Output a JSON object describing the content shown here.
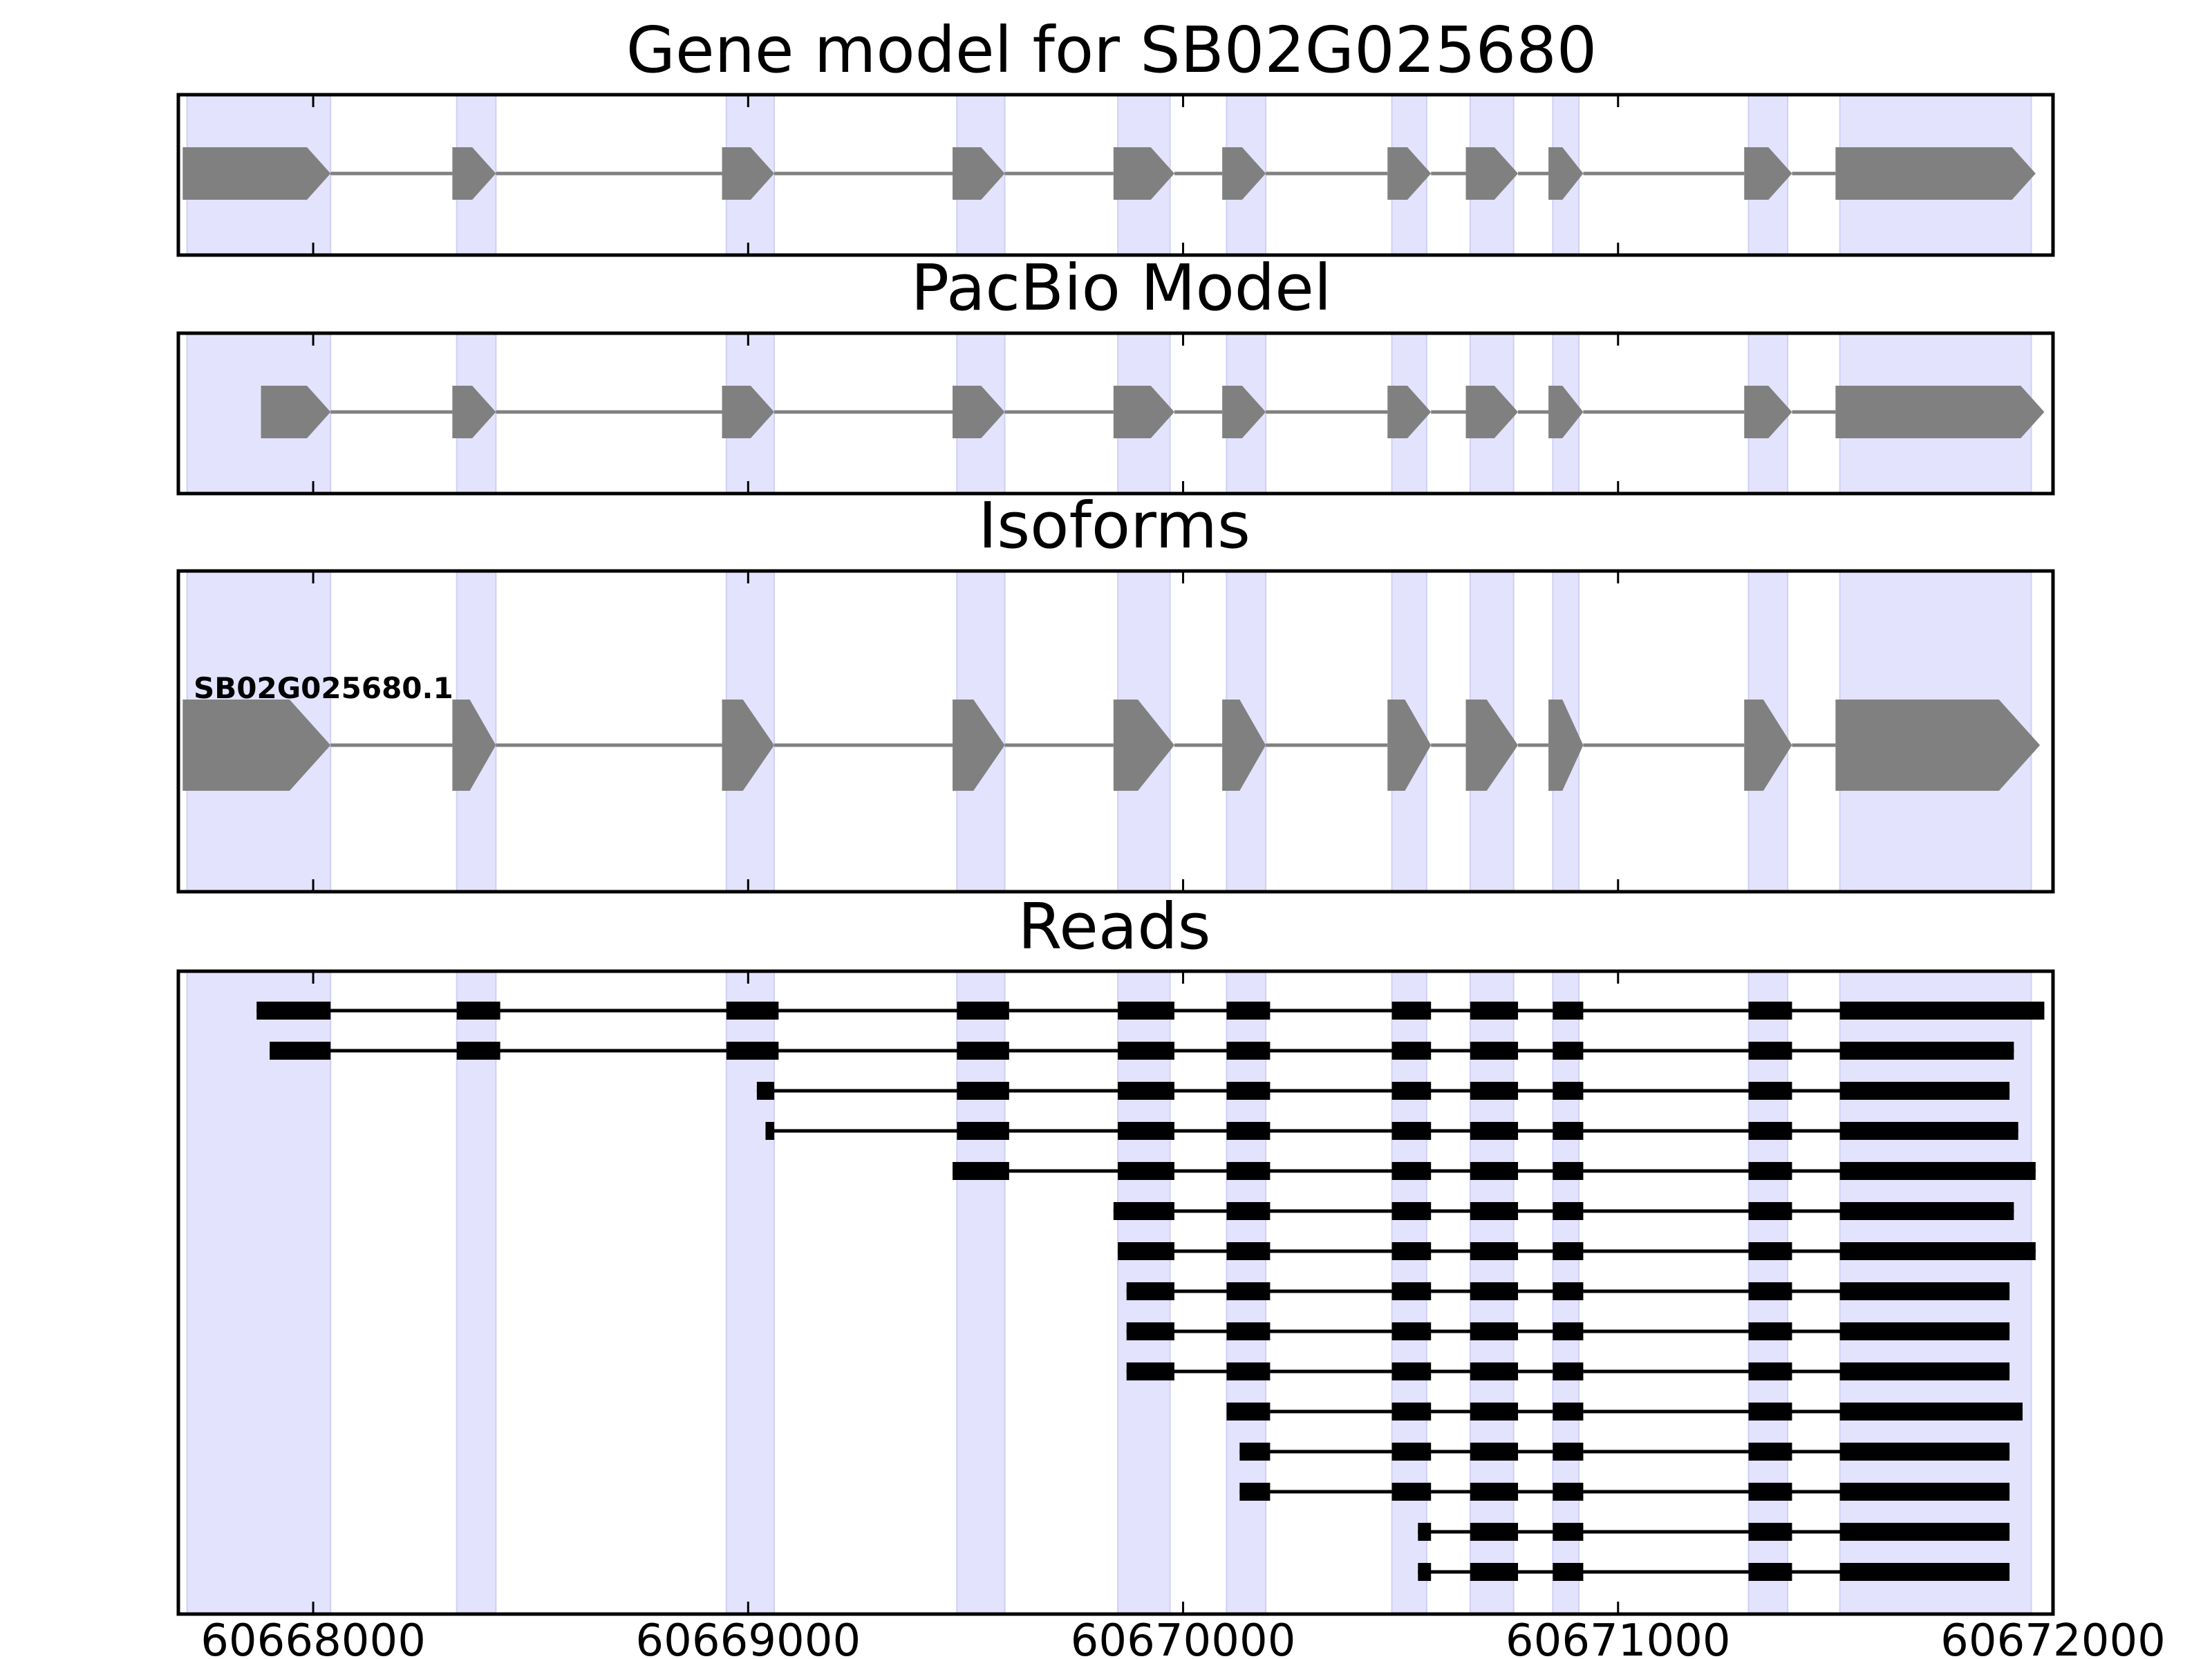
{
  "chart_data": {
    "type": "gene-model-tracks",
    "colors": {
      "exon_band": "#e3e3fd",
      "exon_band_edge": "#cfcff5",
      "model_exon": "#808080",
      "model_intron": "#808080",
      "read_exon": "#000000",
      "read_intron": "#000000",
      "frame": "#000000"
    },
    "x_axis": {
      "range": [
        60667690,
        60672000
      ],
      "ticks": [
        {
          "value": 60668000,
          "label": "60668000"
        },
        {
          "value": 60669000,
          "label": "60669000"
        },
        {
          "value": 60670000,
          "label": "60670000"
        },
        {
          "value": 60671000,
          "label": "60671000"
        },
        {
          "value": 60672000,
          "label": "60672000"
        }
      ]
    },
    "exon_bands": [
      [
        60667710,
        60668040
      ],
      [
        60668330,
        60668420
      ],
      [
        60668950,
        60669060
      ],
      [
        60669480,
        60669590
      ],
      [
        60669850,
        60669970
      ],
      [
        60670100,
        60670190
      ],
      [
        60670480,
        60670560
      ],
      [
        60670660,
        60670760
      ],
      [
        60670850,
        60670910
      ],
      [
        60671300,
        60671390
      ],
      [
        60671510,
        60671950
      ]
    ],
    "panels": [
      {
        "title": "Gene model for SB02G025680",
        "track": "model",
        "exons": [
          [
            60667700,
            60668040
          ],
          [
            60668320,
            60668420
          ],
          [
            60668940,
            60669060
          ],
          [
            60669470,
            60669590
          ],
          [
            60669840,
            60669980
          ],
          [
            60670090,
            60670190
          ],
          [
            60670470,
            60670570
          ],
          [
            60670650,
            60670770
          ],
          [
            60670840,
            60670920
          ],
          [
            60671290,
            60671400
          ],
          [
            60671500,
            60671960
          ]
        ]
      },
      {
        "title": "PacBio Model",
        "track": "model",
        "exons": [
          [
            60667880,
            60668040
          ],
          [
            60668320,
            60668420
          ],
          [
            60668940,
            60669060
          ],
          [
            60669470,
            60669590
          ],
          [
            60669840,
            60669980
          ],
          [
            60670090,
            60670190
          ],
          [
            60670470,
            60670570
          ],
          [
            60670650,
            60670770
          ],
          [
            60670840,
            60670920
          ],
          [
            60671290,
            60671400
          ],
          [
            60671500,
            60671980
          ]
        ]
      },
      {
        "title": "Isoforms",
        "track": "isoforms",
        "isoforms": [
          {
            "label": "SB02G025680.1",
            "exons": [
              [
                60667700,
                60668040
              ],
              [
                60668320,
                60668420
              ],
              [
                60668940,
                60669060
              ],
              [
                60669470,
                60669590
              ],
              [
                60669840,
                60669980
              ],
              [
                60670090,
                60670190
              ],
              [
                60670470,
                60670570
              ],
              [
                60670650,
                60670770
              ],
              [
                60670840,
                60670920
              ],
              [
                60671290,
                60671400
              ],
              [
                60671500,
                60671970
              ]
            ]
          }
        ]
      },
      {
        "title": "Reads",
        "track": "reads",
        "reads": [
          [
            [
              60667870,
              60668040
            ],
            [
              60668330,
              60668430
            ],
            [
              60668950,
              60669070
            ],
            [
              60669480,
              60669600
            ],
            [
              60669850,
              60669980
            ],
            [
              60670100,
              60670200
            ],
            [
              60670480,
              60670570
            ],
            [
              60670660,
              60670770
            ],
            [
              60670850,
              60670920
            ],
            [
              60671300,
              60671400
            ],
            [
              60671510,
              60671980
            ]
          ],
          [
            [
              60667900,
              60668040
            ],
            [
              60668330,
              60668430
            ],
            [
              60668950,
              60669070
            ],
            [
              60669480,
              60669600
            ],
            [
              60669850,
              60669980
            ],
            [
              60670100,
              60670200
            ],
            [
              60670480,
              60670570
            ],
            [
              60670660,
              60670770
            ],
            [
              60670850,
              60670920
            ],
            [
              60671300,
              60671400
            ],
            [
              60671510,
              60671910
            ]
          ],
          [
            [
              60669020,
              60669060
            ],
            [
              60669480,
              60669600
            ],
            [
              60669850,
              60669980
            ],
            [
              60670100,
              60670200
            ],
            [
              60670480,
              60670570
            ],
            [
              60670660,
              60670770
            ],
            [
              60670850,
              60670920
            ],
            [
              60671300,
              60671400
            ],
            [
              60671510,
              60671900
            ]
          ],
          [
            [
              60669040,
              60669060
            ],
            [
              60669480,
              60669600
            ],
            [
              60669850,
              60669980
            ],
            [
              60670100,
              60670200
            ],
            [
              60670480,
              60670570
            ],
            [
              60670660,
              60670770
            ],
            [
              60670850,
              60670920
            ],
            [
              60671300,
              60671400
            ],
            [
              60671510,
              60671920
            ]
          ],
          [
            [
              60669470,
              60669600
            ],
            [
              60669850,
              60669980
            ],
            [
              60670100,
              60670200
            ],
            [
              60670480,
              60670570
            ],
            [
              60670660,
              60670770
            ],
            [
              60670850,
              60670920
            ],
            [
              60671300,
              60671400
            ],
            [
              60671510,
              60671960
            ]
          ],
          [
            [
              60669840,
              60669980
            ],
            [
              60670100,
              60670200
            ],
            [
              60670480,
              60670570
            ],
            [
              60670660,
              60670770
            ],
            [
              60670850,
              60670920
            ],
            [
              60671300,
              60671400
            ],
            [
              60671510,
              60671910
            ]
          ],
          [
            [
              60669850,
              60669980
            ],
            [
              60670100,
              60670200
            ],
            [
              60670480,
              60670570
            ],
            [
              60670660,
              60670770
            ],
            [
              60670850,
              60670920
            ],
            [
              60671300,
              60671400
            ],
            [
              60671510,
              60671960
            ]
          ],
          [
            [
              60669870,
              60669980
            ],
            [
              60670100,
              60670200
            ],
            [
              60670480,
              60670570
            ],
            [
              60670660,
              60670770
            ],
            [
              60670850,
              60670920
            ],
            [
              60671300,
              60671400
            ],
            [
              60671510,
              60671900
            ]
          ],
          [
            [
              60669870,
              60669980
            ],
            [
              60670100,
              60670200
            ],
            [
              60670480,
              60670570
            ],
            [
              60670660,
              60670770
            ],
            [
              60670850,
              60670920
            ],
            [
              60671300,
              60671400
            ],
            [
              60671510,
              60671900
            ]
          ],
          [
            [
              60669870,
              60669980
            ],
            [
              60670100,
              60670200
            ],
            [
              60670480,
              60670570
            ],
            [
              60670660,
              60670770
            ],
            [
              60670850,
              60670920
            ],
            [
              60671300,
              60671400
            ],
            [
              60671510,
              60671900
            ]
          ],
          [
            [
              60670100,
              60670200
            ],
            [
              60670480,
              60670570
            ],
            [
              60670660,
              60670770
            ],
            [
              60670850,
              60670920
            ],
            [
              60671300,
              60671400
            ],
            [
              60671510,
              60671930
            ]
          ],
          [
            [
              60670130,
              60670200
            ],
            [
              60670480,
              60670570
            ],
            [
              60670660,
              60670770
            ],
            [
              60670850,
              60670920
            ],
            [
              60671300,
              60671400
            ],
            [
              60671510,
              60671900
            ]
          ],
          [
            [
              60670130,
              60670200
            ],
            [
              60670480,
              60670570
            ],
            [
              60670660,
              60670770
            ],
            [
              60670850,
              60670920
            ],
            [
              60671300,
              60671400
            ],
            [
              60671510,
              60671900
            ]
          ],
          [
            [
              60670540,
              60670570
            ],
            [
              60670660,
              60670770
            ],
            [
              60670850,
              60670920
            ],
            [
              60671300,
              60671400
            ],
            [
              60671510,
              60671900
            ]
          ],
          [
            [
              60670540,
              60670570
            ],
            [
              60670660,
              60670770
            ],
            [
              60670850,
              60670920
            ],
            [
              60671300,
              60671400
            ],
            [
              60671510,
              60671900
            ]
          ]
        ]
      }
    ]
  }
}
